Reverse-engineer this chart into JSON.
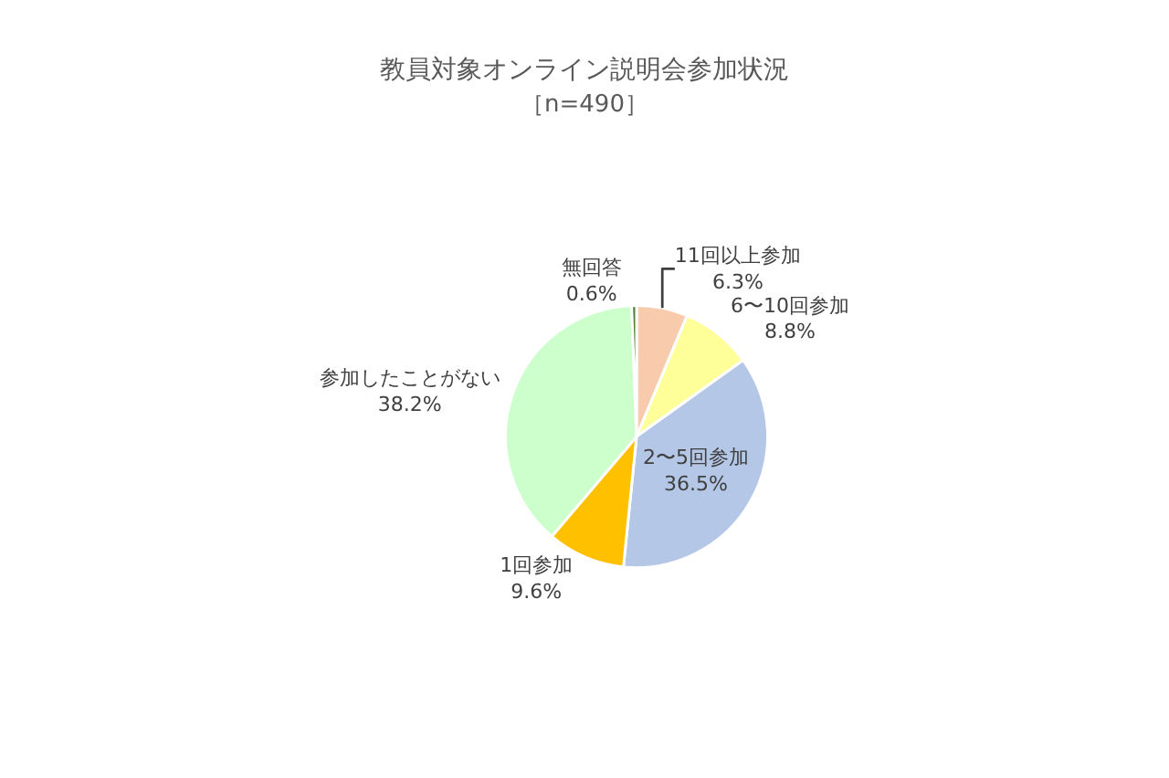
{
  "chart_data": {
    "type": "pie",
    "title": "教員対象オンライン説明会参加状況",
    "subtitle": "［n=490］",
    "categories": [
      "11回以上参加",
      "6〜10回参加",
      "2〜5回参加",
      "1回参加",
      "参加したことがない",
      "無回答"
    ],
    "values": [
      6.3,
      8.8,
      36.5,
      9.6,
      38.2,
      0.6
    ],
    "value_labels": [
      "6.3%",
      "8.8%",
      "36.5%",
      "9.6%",
      "38.2%",
      "0.6%"
    ],
    "colors": [
      "#f8cbad",
      "#ffff99",
      "#b4c7e7",
      "#ffc000",
      "#ccffcc",
      "#548235"
    ],
    "legend": false
  }
}
